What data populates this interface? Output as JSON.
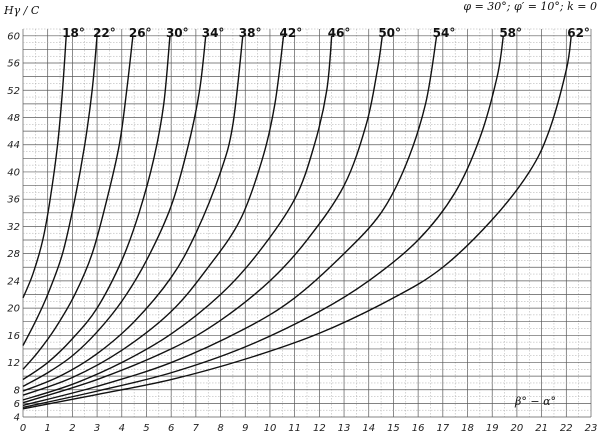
{
  "chart_data": {
    "type": "line",
    "ylabel": "Hγ / C",
    "xlabel": "β° − α°",
    "params": "φ = 30°; φ′ = 10°; k = 0",
    "xlim": [
      0,
      23
    ],
    "ylim": [
      4,
      61
    ],
    "x_ticks": [
      "0",
      "1",
      "2",
      "3",
      "4",
      "5",
      "6",
      "7",
      "8",
      "9",
      "10",
      "11",
      "12",
      "13",
      "14",
      "15",
      "16",
      "17",
      "18",
      "19",
      "20",
      "21",
      "22",
      "23"
    ],
    "y_ticks": [
      "4",
      "6",
      "8",
      "12",
      "16",
      "20",
      "24",
      "28",
      "32",
      "36",
      "40",
      "44",
      "48",
      "52",
      "56",
      "60"
    ],
    "grid": true,
    "series": [
      {
        "name": "18°",
        "points": [
          [
            0,
            21.5
          ],
          [
            0.4,
            25
          ],
          [
            0.8,
            30
          ],
          [
            1.1,
            36
          ],
          [
            1.4,
            44
          ],
          [
            1.6,
            52
          ],
          [
            1.75,
            60
          ]
        ]
      },
      {
        "name": "22°",
        "points": [
          [
            0,
            14.5
          ],
          [
            0.5,
            18
          ],
          [
            1,
            22
          ],
          [
            1.6,
            28
          ],
          [
            2.1,
            36
          ],
          [
            2.5,
            44
          ],
          [
            2.8,
            52
          ],
          [
            3.0,
            60
          ]
        ]
      },
      {
        "name": "26°",
        "points": [
          [
            0,
            11
          ],
          [
            0.6,
            13.5
          ],
          [
            1.3,
            17
          ],
          [
            2.1,
            22
          ],
          [
            2.8,
            28
          ],
          [
            3.4,
            36
          ],
          [
            3.9,
            44
          ],
          [
            4.2,
            52
          ],
          [
            4.45,
            60
          ]
        ]
      },
      {
        "name": "30°",
        "points": [
          [
            0,
            9.5
          ],
          [
            1,
            12
          ],
          [
            2,
            15.5
          ],
          [
            3,
            20
          ],
          [
            4,
            27
          ],
          [
            4.7,
            34
          ],
          [
            5.3,
            42
          ],
          [
            5.7,
            50
          ],
          [
            5.95,
            60
          ]
        ]
      },
      {
        "name": "34°",
        "points": [
          [
            0,
            8.5
          ],
          [
            1,
            10.5
          ],
          [
            2,
            13
          ],
          [
            3,
            16.5
          ],
          [
            4,
            21
          ],
          [
            5,
            27
          ],
          [
            6,
            35
          ],
          [
            6.7,
            44
          ],
          [
            7.15,
            52
          ],
          [
            7.4,
            60
          ]
        ]
      },
      {
        "name": "38°",
        "points": [
          [
            0,
            7.8
          ],
          [
            1.5,
            10
          ],
          [
            3,
            13.3
          ],
          [
            4.5,
            18
          ],
          [
            6,
            24.5
          ],
          [
            7,
            31
          ],
          [
            8,
            40
          ],
          [
            8.5,
            47
          ],
          [
            8.9,
            60
          ]
        ]
      },
      {
        "name": "42°",
        "points": [
          [
            0,
            7.2
          ],
          [
            2,
            9.8
          ],
          [
            4,
            13.8
          ],
          [
            6,
            19.5
          ],
          [
            7.5,
            26
          ],
          [
            8.8,
            33
          ],
          [
            9.7,
            42
          ],
          [
            10.2,
            50
          ],
          [
            10.55,
            60
          ]
        ]
      },
      {
        "name": "46°",
        "points": [
          [
            0,
            6.5
          ],
          [
            2,
            8.8
          ],
          [
            4,
            12
          ],
          [
            6,
            16.2
          ],
          [
            8,
            22
          ],
          [
            9.5,
            28
          ],
          [
            11,
            36
          ],
          [
            11.8,
            44
          ],
          [
            12.3,
            52
          ],
          [
            12.5,
            60
          ]
        ]
      },
      {
        "name": "50°",
        "points": [
          [
            0,
            6.1
          ],
          [
            3,
            9.5
          ],
          [
            6,
            14
          ],
          [
            8,
            18.2
          ],
          [
            10,
            24
          ],
          [
            11.5,
            30
          ],
          [
            13,
            38
          ],
          [
            13.9,
            47
          ],
          [
            14.35,
            55
          ],
          [
            14.55,
            60
          ]
        ]
      },
      {
        "name": "54°",
        "points": [
          [
            0,
            5.7
          ],
          [
            3,
            8.5
          ],
          [
            6,
            12
          ],
          [
            9,
            17
          ],
          [
            11,
            21.5
          ],
          [
            13,
            28
          ],
          [
            14.5,
            34
          ],
          [
            15.5,
            41
          ],
          [
            16.3,
            50
          ],
          [
            16.75,
            60
          ]
        ]
      },
      {
        "name": "58°",
        "points": [
          [
            0,
            5.4
          ],
          [
            3,
            7.8
          ],
          [
            6,
            10.5
          ],
          [
            9,
            14.3
          ],
          [
            12,
            19.5
          ],
          [
            14,
            24
          ],
          [
            16,
            30
          ],
          [
            17.5,
            37
          ],
          [
            18.5,
            45
          ],
          [
            19.2,
            54
          ],
          [
            19.45,
            60
          ]
        ]
      },
      {
        "name": "62°",
        "points": [
          [
            0,
            5.2
          ],
          [
            3,
            7.3
          ],
          [
            6,
            9.5
          ],
          [
            9,
            12.5
          ],
          [
            12,
            16.3
          ],
          [
            15,
            21.5
          ],
          [
            17,
            26
          ],
          [
            19,
            33
          ],
          [
            20.5,
            40
          ],
          [
            21.3,
            46
          ],
          [
            22,
            55
          ],
          [
            22.2,
            60
          ]
        ]
      }
    ]
  }
}
